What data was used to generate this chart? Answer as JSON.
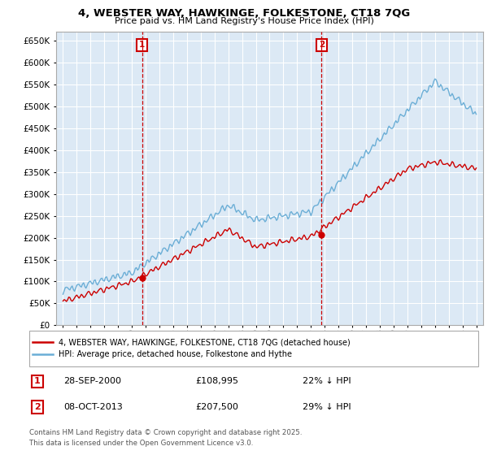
{
  "title": "4, WEBSTER WAY, HAWKINGE, FOLKESTONE, CT18 7QG",
  "subtitle": "Price paid vs. HM Land Registry's House Price Index (HPI)",
  "yticks": [
    0,
    50000,
    100000,
    150000,
    200000,
    250000,
    300000,
    350000,
    400000,
    450000,
    500000,
    550000,
    600000,
    650000
  ],
  "ylim": [
    0,
    670000
  ],
  "xlim_start": 1994.5,
  "xlim_end": 2025.5,
  "background_color": "#ffffff",
  "plot_bg_color": "#dce9f5",
  "grid_color": "#ffffff",
  "hpi_color": "#6baed6",
  "price_color": "#cc0000",
  "sale1_date": "28-SEP-2000",
  "sale1_price": 108995,
  "sale1_pct": "22% ↓ HPI",
  "sale2_date": "08-OCT-2013",
  "sale2_price": 207500,
  "sale2_pct": "29% ↓ HPI",
  "sale1_year": 2000.75,
  "sale2_year": 2013.77,
  "legend_label_price": "4, WEBSTER WAY, HAWKINGE, FOLKESTONE, CT18 7QG (detached house)",
  "legend_label_hpi": "HPI: Average price, detached house, Folkestone and Hythe",
  "footnote": "Contains HM Land Registry data © Crown copyright and database right 2025.\nThis data is licensed under the Open Government Licence v3.0.",
  "vline_color": "#cc0000",
  "marker_color": "#cc0000",
  "number_box_color": "#cc0000"
}
